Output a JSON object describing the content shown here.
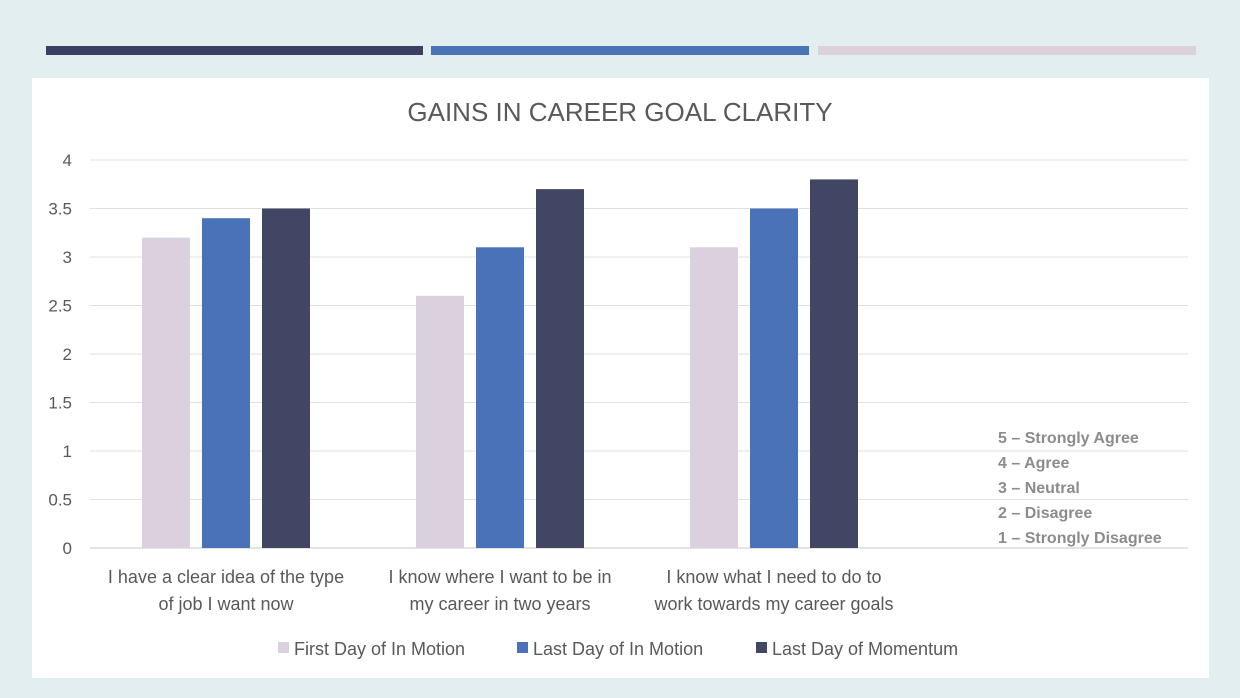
{
  "accent_bars": [
    {
      "color": "#3a3f63"
    },
    {
      "color": "#4a73b5"
    },
    {
      "color": "#dcd0dc"
    }
  ],
  "chart_data": {
    "type": "bar",
    "title": "GAINS IN CAREER GOAL CLARITY",
    "categories": [
      [
        "I have a clear idea of the type",
        "of job I want now"
      ],
      [
        "I know where I want to be in",
        "my career in two years"
      ],
      [
        "I know what I need to do to",
        "work towards my career goals"
      ]
    ],
    "series": [
      {
        "name": "First Day of In Motion",
        "color": "#dbd0dd",
        "values": [
          3.2,
          2.6,
          3.1
        ]
      },
      {
        "name": "Last Day of In Motion",
        "color": "#4a72b8",
        "values": [
          3.4,
          3.1,
          3.5
        ]
      },
      {
        "name": "Last Day of Momentum",
        "color": "#424665",
        "values": [
          3.5,
          3.7,
          3.8
        ]
      }
    ],
    "ylim": [
      0,
      4
    ],
    "yticks": [
      "0",
      "0.5",
      "1",
      "1.5",
      "2",
      "2.5",
      "3",
      "3.5",
      "4"
    ],
    "grid": true,
    "legend": "bottom",
    "annotations": [
      "5 – Strongly  Agree",
      "4 – Agree",
      "3 – Neutral",
      "2 – Disagree",
      "1 – Strongly Disagree"
    ]
  }
}
